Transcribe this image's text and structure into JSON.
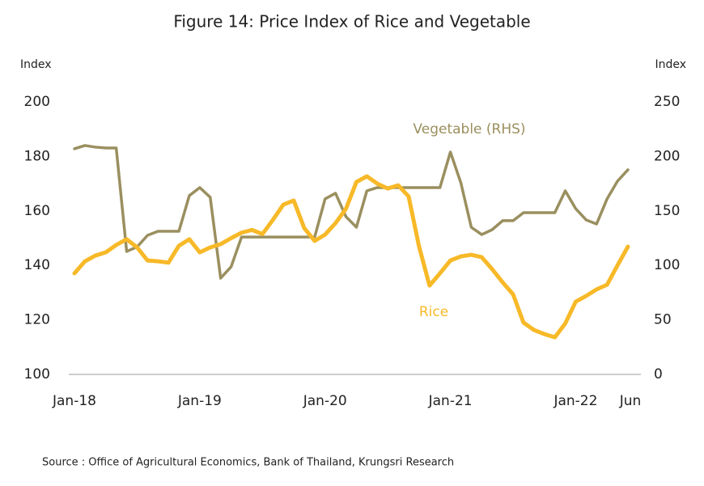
{
  "chart_data": {
    "type": "line",
    "title": "Figure 14: Price Index of Rice and Vegetable",
    "y_label": "Index",
    "y2_label": "Index",
    "source": "Source : Office of Agricultural Economics, Bank of Thailand, Krungsri Research",
    "annotations": [
      "Vegetable (RHS)",
      "Rice"
    ],
    "categories": [
      "Jan-18",
      null,
      null,
      null,
      null,
      null,
      null,
      null,
      null,
      null,
      null,
      null,
      "Jan-19",
      null,
      null,
      null,
      null,
      null,
      null,
      null,
      null,
      null,
      null,
      null,
      "Jan-20",
      null,
      null,
      null,
      null,
      null,
      null,
      null,
      null,
      null,
      null,
      null,
      "Jan-21",
      null,
      null,
      null,
      null,
      null,
      null,
      null,
      null,
      null,
      null,
      null,
      "Jan-22",
      null,
      null,
      null,
      null,
      "Jun"
    ],
    "series": [
      {
        "name": "Vegetable (RHS)",
        "color": "#9a8f5f",
        "axis": "y2",
        "values": [
          207,
          210,
          208.5,
          207.7,
          207.7,
          112.8,
          117,
          127.6,
          131.3,
          131.3,
          131.3,
          164,
          171.4,
          162.5,
          88.3,
          98.7,
          126,
          126,
          126,
          126,
          126,
          126,
          126,
          126,
          161,
          166.2,
          144.7,
          135,
          168.4,
          171.4,
          171.4,
          171.4,
          171.4,
          171.4,
          171.4,
          171.4,
          204,
          175.8,
          135,
          128.3,
          132.8,
          141,
          141,
          148.4,
          148.4,
          148.4,
          148.4,
          168.4,
          152,
          141.7,
          138,
          161,
          177.3,
          187.7
        ]
      },
      {
        "name": "Rice",
        "color": "#f7b928",
        "axis": "y",
        "values": [
          137.1,
          141.5,
          143.6,
          144.8,
          147.5,
          149.6,
          146.6,
          141.8,
          141.5,
          141,
          147.2,
          149.6,
          144.8,
          146.6,
          147.8,
          150,
          152,
          153,
          151.5,
          156.7,
          162.3,
          163.8,
          153.7,
          149,
          151.3,
          155.5,
          160.8,
          170.6,
          172.7,
          170,
          168.2,
          169.4,
          165.3,
          146.9,
          132.6,
          137.1,
          141.8,
          143.3,
          143.9,
          143,
          138.6,
          133.8,
          129.4,
          119,
          116.3,
          114.8,
          113.6,
          118.7,
          126.7,
          128.8,
          131.2,
          132.9,
          140,
          146.9
        ]
      }
    ],
    "ylim": [
      100,
      200
    ],
    "yticks": [
      100,
      120,
      140,
      160,
      180,
      200
    ],
    "y2lim": [
      0,
      250
    ],
    "y2ticks": [
      0,
      50,
      100,
      150,
      200,
      250
    ],
    "grid": false
  }
}
